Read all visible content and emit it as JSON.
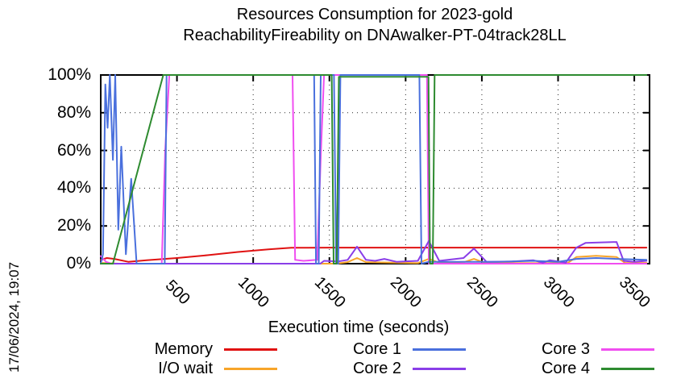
{
  "title": {
    "line1": "Resources Consumption for 2023-gold",
    "line2": "ReachabilityFireability on DNAwalker-PT-04track28LL"
  },
  "timestamp": "17/06/2024, 19:07",
  "chart_data": {
    "type": "line",
    "title": "Resources Consumption for 2023-gold ReachabilityFireability on DNAwalker-PT-04track28LL",
    "xlabel": "Execution time (seconds)",
    "ylabel": "",
    "xlim": [
      0,
      3600
    ],
    "ylim": [
      0,
      100
    ],
    "x_ticks": [
      500,
      1000,
      1500,
      2000,
      2500,
      3000,
      3500
    ],
    "y_ticks": [
      0,
      20,
      40,
      60,
      80,
      100
    ],
    "y_tick_suffix": "%",
    "grid": true,
    "legend_position": "bottom",
    "paint_order": [
      "Memory",
      "I/O wait",
      "Core 3",
      "Core 2",
      "Core 1",
      "Core 4"
    ],
    "series": [
      {
        "name": "Memory",
        "color": "#e01212",
        "points": [
          [
            0,
            2
          ],
          [
            40,
            3
          ],
          [
            90,
            2.5
          ],
          [
            180,
            1
          ],
          [
            300,
            1.8
          ],
          [
            500,
            3
          ],
          [
            700,
            4.5
          ],
          [
            900,
            6.2
          ],
          [
            1100,
            7.6
          ],
          [
            1250,
            8.4
          ],
          [
            1500,
            8.5
          ],
          [
            3580,
            8.5
          ]
        ]
      },
      {
        "name": "I/O wait",
        "color": "#f7a52a",
        "points": [
          [
            0,
            0.4
          ],
          [
            120,
            0
          ],
          [
            1540,
            0
          ],
          [
            1620,
            0.8
          ],
          [
            1681,
            3
          ],
          [
            1740,
            0.8
          ],
          [
            2080,
            0.3
          ],
          [
            2152,
            2.5
          ],
          [
            2220,
            0.5
          ],
          [
            2390,
            1
          ],
          [
            2448,
            2.5
          ],
          [
            2520,
            0.4
          ],
          [
            3060,
            0.2
          ],
          [
            3120,
            3.5
          ],
          [
            3250,
            4.2
          ],
          [
            3384,
            3.5
          ],
          [
            3440,
            0.4
          ],
          [
            3580,
            0.4
          ]
        ]
      },
      {
        "name": "Core 1",
        "color": "#4a70dd",
        "points": [
          [
            0,
            0
          ],
          [
            15,
            5
          ],
          [
            30,
            95
          ],
          [
            45,
            72
          ],
          [
            60,
            100
          ],
          [
            80,
            55
          ],
          [
            95,
            100
          ],
          [
            115,
            18
          ],
          [
            135,
            62
          ],
          [
            165,
            5
          ],
          [
            200,
            45
          ],
          [
            235,
            0
          ],
          [
            420,
            0
          ],
          [
            432,
            100
          ],
          [
            1400,
            100
          ],
          [
            1412,
            0
          ],
          [
            1430,
            0
          ],
          [
            1443,
            100
          ],
          [
            1530,
            100
          ],
          [
            1544,
            0
          ],
          [
            1558,
            0
          ],
          [
            1572,
            100
          ],
          [
            2090,
            100
          ],
          [
            2104,
            0
          ],
          [
            2152,
            1
          ],
          [
            2600,
            1
          ],
          [
            2839,
            1.5
          ],
          [
            3000,
            1
          ],
          [
            3120,
            2.5
          ],
          [
            3250,
            3
          ],
          [
            3384,
            2.5
          ],
          [
            3580,
            2
          ]
        ]
      },
      {
        "name": "Core 2",
        "color": "#8a3ee8",
        "points": [
          [
            0,
            0
          ],
          [
            1440,
            0
          ],
          [
            1465,
            1.5
          ],
          [
            1560,
            1.2
          ],
          [
            1620,
            2
          ],
          [
            1681,
            9
          ],
          [
            1740,
            2
          ],
          [
            1800,
            1.5
          ],
          [
            1860,
            2.5
          ],
          [
            1940,
            1
          ],
          [
            2080,
            1.5
          ],
          [
            2152,
            12
          ],
          [
            2220,
            1.5
          ],
          [
            2380,
            3
          ],
          [
            2448,
            8
          ],
          [
            2530,
            1
          ],
          [
            2700,
            1.2
          ],
          [
            2839,
            1.8
          ],
          [
            2900,
            0.5
          ],
          [
            2945,
            1.8
          ],
          [
            3050,
            0.5
          ],
          [
            3120,
            8.5
          ],
          [
            3180,
            11
          ],
          [
            3384,
            11.5
          ],
          [
            3430,
            1.5
          ],
          [
            3500,
            1
          ],
          [
            3580,
            1.5
          ]
        ]
      },
      {
        "name": "Core 3",
        "color": "#f04ef0",
        "points": [
          [
            0,
            4
          ],
          [
            35,
            1
          ],
          [
            70,
            0
          ],
          [
            400,
            0
          ],
          [
            423,
            60
          ],
          [
            450,
            100
          ],
          [
            1258,
            100
          ],
          [
            1275,
            2
          ],
          [
            1330,
            1.5
          ],
          [
            1420,
            2
          ],
          [
            1445,
            60
          ],
          [
            1465,
            100
          ],
          [
            2140,
            100
          ],
          [
            2152,
            0
          ],
          [
            3580,
            0
          ]
        ]
      },
      {
        "name": "Core 4",
        "color": "#2e8b30",
        "points": [
          [
            0,
            0
          ],
          [
            80,
            0
          ],
          [
            410,
            100
          ],
          [
            1515,
            100
          ],
          [
            1528,
            0
          ],
          [
            1548,
            0
          ],
          [
            1562,
            99
          ],
          [
            2150,
            99
          ],
          [
            2160,
            0
          ],
          [
            2178,
            0
          ],
          [
            2190,
            100
          ],
          [
            3580,
            100
          ]
        ]
      }
    ]
  }
}
